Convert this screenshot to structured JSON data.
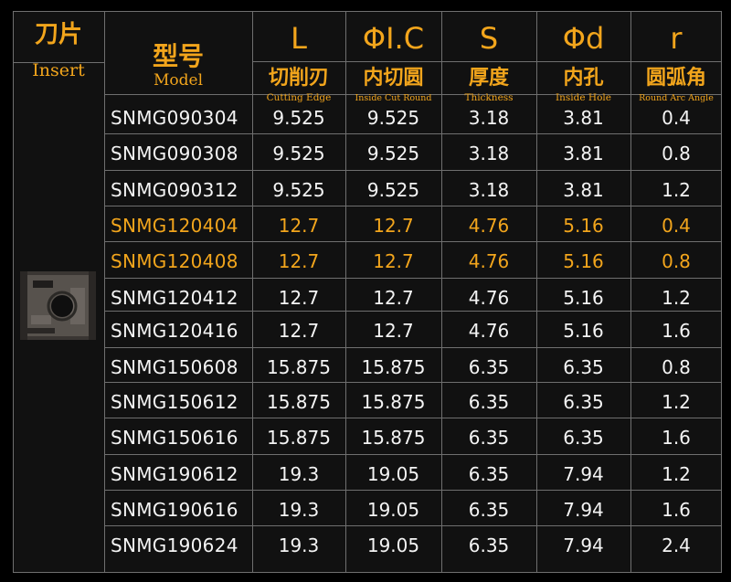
{
  "header": {
    "insert_cn": "刀片",
    "insert_en": "Insert",
    "model_cn": "型号",
    "model_en": "Model",
    "columns": [
      {
        "symbol": "L",
        "cn": "切削刃",
        "en": "Cutting Edge"
      },
      {
        "symbol": "ΦI.C",
        "cn": "内切圆",
        "en": "Inside Cut Round"
      },
      {
        "symbol": "S",
        "cn": "厚度",
        "en": "Thickness"
      },
      {
        "symbol": "Φd",
        "cn": "内孔",
        "en": "Inside Hole"
      },
      {
        "symbol": "r",
        "cn": "圆弧角",
        "en": "Round Arc Angle"
      }
    ]
  },
  "colors": {
    "accent": "#f2a51c",
    "text": "#f4f4f4",
    "grid": "#6f6f6f",
    "bg": "#000000"
  },
  "insert_image": "carbide-insert-photo",
  "rows": [
    {
      "model": "SNMG090304",
      "L": "9.525",
      "IC": "9.525",
      "S": "3.18",
      "d": "3.81",
      "r": "0.4",
      "highlight": false
    },
    {
      "model": "SNMG090308",
      "L": "9.525",
      "IC": "9.525",
      "S": "3.18",
      "d": "3.81",
      "r": "0.8",
      "highlight": false
    },
    {
      "model": "SNMG090312",
      "L": "9.525",
      "IC": "9.525",
      "S": "3.18",
      "d": "3.81",
      "r": "1.2",
      "highlight": false
    },
    {
      "model": "SNMG120404",
      "L": "12.7",
      "IC": "12.7",
      "S": "4.76",
      "d": "5.16",
      "r": "0.4",
      "highlight": true
    },
    {
      "model": "SNMG120408",
      "L": "12.7",
      "IC": "12.7",
      "S": "4.76",
      "d": "5.16",
      "r": "0.8",
      "highlight": true
    },
    {
      "model": "SNMG120412",
      "L": "12.7",
      "IC": "12.7",
      "S": "4.76",
      "d": "5.16",
      "r": "1.2",
      "highlight": false
    },
    {
      "model": "SNMG120416",
      "L": "12.7",
      "IC": "12.7",
      "S": "4.76",
      "d": "5.16",
      "r": "1.6",
      "highlight": false
    },
    {
      "model": "SNMG150608",
      "L": "15.875",
      "IC": "15.875",
      "S": "6.35",
      "d": "6.35",
      "r": "0.8",
      "highlight": false
    },
    {
      "model": "SNMG150612",
      "L": "15.875",
      "IC": "15.875",
      "S": "6.35",
      "d": "6.35",
      "r": "1.2",
      "highlight": false
    },
    {
      "model": "SNMG150616",
      "L": "15.875",
      "IC": "15.875",
      "S": "6.35",
      "d": "6.35",
      "r": "1.6",
      "highlight": false
    },
    {
      "model": "SNMG190612",
      "L": "19.3",
      "IC": "19.05",
      "S": "6.35",
      "d": "7.94",
      "r": "1.2",
      "highlight": false
    },
    {
      "model": "SNMG190616",
      "L": "19.3",
      "IC": "19.05",
      "S": "6.35",
      "d": "7.94",
      "r": "1.6",
      "highlight": false
    },
    {
      "model": "SNMG190624",
      "L": "19.3",
      "IC": "19.05",
      "S": "6.35",
      "d": "7.94",
      "r": "2.4",
      "highlight": false
    }
  ]
}
